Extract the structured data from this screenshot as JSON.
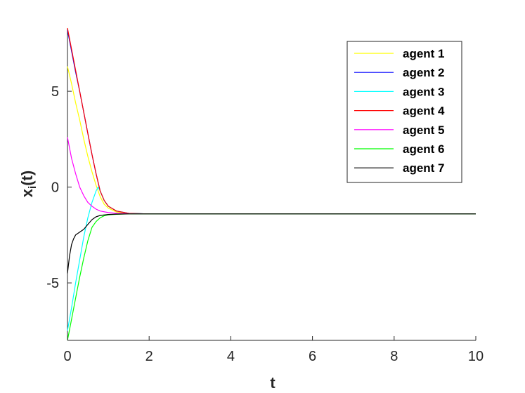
{
  "chart_data": {
    "type": "line",
    "title": "",
    "xlabel": "t",
    "ylabel_main": "x",
    "ylabel_sub": "i",
    "ylabel_tail": "(t)",
    "xlim": [
      0,
      10
    ],
    "ylim": [
      -8,
      8.3
    ],
    "xticks": [
      0,
      2,
      4,
      6,
      8,
      10
    ],
    "xtick_labels": [
      "0",
      "2",
      "4",
      "6",
      "8",
      "10"
    ],
    "yticks": [
      -5,
      0,
      5
    ],
    "ytick_labels": [
      "-5",
      "0",
      "5"
    ],
    "grid": false,
    "legend_position": "top-right",
    "series": [
      {
        "name": "agent 1",
        "color": "#ffff00",
        "x": [
          0,
          0.1,
          0.2,
          0.3,
          0.4,
          0.5,
          0.6,
          0.7,
          0.8,
          0.9,
          1.0,
          1.2,
          1.5,
          2,
          3,
          4,
          6,
          8,
          10
        ],
        "y": [
          6.3,
          5.4,
          4.4,
          3.5,
          2.5,
          1.6,
          0.8,
          0.1,
          -0.5,
          -0.9,
          -1.1,
          -1.3,
          -1.38,
          -1.4,
          -1.4,
          -1.4,
          -1.4,
          -1.4,
          -1.4
        ]
      },
      {
        "name": "agent 2",
        "color": "#0000ff",
        "x": [
          0,
          0.1,
          0.2,
          0.3,
          0.4,
          0.5,
          0.6,
          0.7,
          0.8,
          0.9,
          1.0,
          1.2,
          1.5,
          2,
          3,
          4,
          6,
          8,
          10
        ],
        "y": [
          8.2,
          7.1,
          6.0,
          5.0,
          3.9,
          2.8,
          1.7,
          0.7,
          -0.2,
          -0.7,
          -1.0,
          -1.25,
          -1.37,
          -1.4,
          -1.4,
          -1.4,
          -1.4,
          -1.4,
          -1.4
        ]
      },
      {
        "name": "agent 3",
        "color": "#00ffff",
        "x": [
          0,
          0.1,
          0.2,
          0.3,
          0.4,
          0.5,
          0.6,
          0.7,
          0.75,
          0.8,
          0.9,
          1.0,
          1.2,
          1.5,
          2,
          3,
          4,
          6,
          8,
          10
        ],
        "y": [
          -7.5,
          -6.3,
          -5.0,
          -3.8,
          -2.6,
          -1.6,
          -0.8,
          -0.2,
          0.0,
          -0.2,
          -0.7,
          -1.0,
          -1.25,
          -1.37,
          -1.4,
          -1.4,
          -1.4,
          -1.4,
          -1.4,
          -1.4
        ]
      },
      {
        "name": "agent 4",
        "color": "#ff0000",
        "x": [
          0,
          0.1,
          0.2,
          0.3,
          0.4,
          0.5,
          0.6,
          0.7,
          0.8,
          0.9,
          1.0,
          1.2,
          1.5,
          2,
          3,
          4,
          6,
          8,
          10
        ],
        "y": [
          8.3,
          7.2,
          6.1,
          5.0,
          3.9,
          2.8,
          1.7,
          0.7,
          -0.2,
          -0.7,
          -1.0,
          -1.25,
          -1.37,
          -1.4,
          -1.4,
          -1.4,
          -1.4,
          -1.4,
          -1.4
        ]
      },
      {
        "name": "agent 5",
        "color": "#ff00ff",
        "x": [
          0,
          0.1,
          0.2,
          0.3,
          0.4,
          0.5,
          0.6,
          0.7,
          0.8,
          1.0,
          1.2,
          1.5,
          2,
          3,
          4,
          6,
          8,
          10
        ],
        "y": [
          2.6,
          1.5,
          0.7,
          0.0,
          -0.45,
          -0.8,
          -1.0,
          -1.15,
          -1.25,
          -1.33,
          -1.37,
          -1.39,
          -1.4,
          -1.4,
          -1.4,
          -1.4,
          -1.4,
          -1.4
        ]
      },
      {
        "name": "agent 6",
        "color": "#00ff00",
        "x": [
          0,
          0.1,
          0.2,
          0.3,
          0.4,
          0.5,
          0.6,
          0.7,
          0.8,
          0.9,
          1.0,
          1.2,
          1.5,
          2,
          3,
          4,
          6,
          8,
          10
        ],
        "y": [
          -8.0,
          -6.9,
          -5.8,
          -4.7,
          -3.7,
          -2.8,
          -2.1,
          -1.8,
          -1.6,
          -1.5,
          -1.45,
          -1.42,
          -1.4,
          -1.4,
          -1.4,
          -1.4,
          -1.4,
          -1.4,
          -1.4
        ]
      },
      {
        "name": "agent 7",
        "color": "#000000",
        "x": [
          0,
          0.05,
          0.1,
          0.15,
          0.2,
          0.3,
          0.4,
          0.5,
          0.6,
          0.7,
          0.8,
          1.0,
          1.2,
          1.5,
          2,
          3,
          4,
          6,
          8,
          10
        ],
        "y": [
          -4.5,
          -3.6,
          -3.0,
          -2.7,
          -2.5,
          -2.35,
          -2.2,
          -1.95,
          -1.7,
          -1.55,
          -1.48,
          -1.43,
          -1.41,
          -1.4,
          -1.4,
          -1.4,
          -1.4,
          -1.4,
          -1.4,
          -1.4
        ]
      }
    ]
  }
}
